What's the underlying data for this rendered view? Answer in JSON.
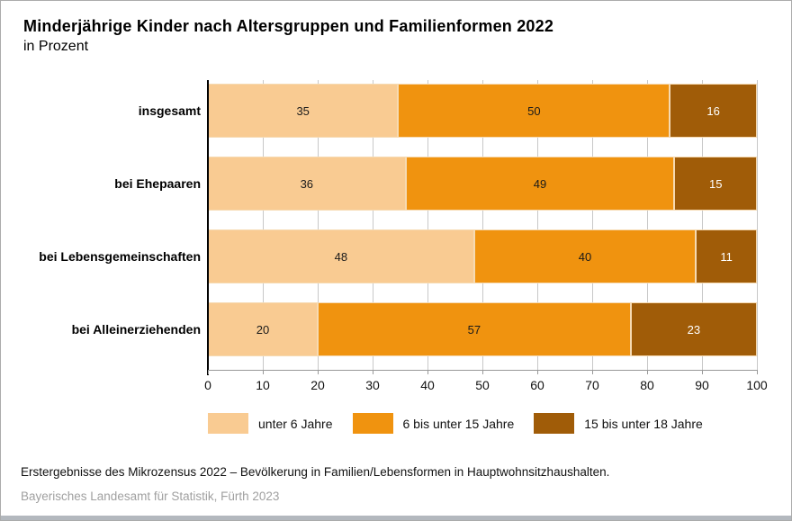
{
  "header": {
    "title": "Minderjährige Kinder nach Altersgruppen und Familienformen 2022",
    "subtitle": "in Prozent"
  },
  "chart_data": {
    "type": "bar",
    "variant": "horizontal-stacked",
    "title": "Minderjährige Kinder nach Altersgruppen und Familienformen 2022",
    "subtitle": "in Prozent",
    "categories": [
      "insgesamt",
      "bei Ehepaaren",
      "bei Lebensgemeinschaften",
      "bei Alleinerziehenden"
    ],
    "series": [
      {
        "name": "unter 6 Jahre",
        "color": "#F9CB92",
        "label_color": "#1a1a1a",
        "values": [
          35,
          36,
          48,
          20
        ]
      },
      {
        "name": "6 bis unter 15 Jahre",
        "color": "#F0930F",
        "label_color": "#1a1a1a",
        "values": [
          50,
          49,
          40,
          57
        ]
      },
      {
        "name": "15 bis unter 18 Jahre",
        "color": "#A05C08",
        "label_color": "#ffffff",
        "values": [
          16,
          15,
          11,
          23
        ]
      }
    ],
    "xlim": [
      0,
      100
    ],
    "x_ticks": [
      0,
      10,
      20,
      30,
      40,
      50,
      60,
      70,
      80,
      90,
      100
    ],
    "grid": true,
    "legend_position": "bottom"
  },
  "footer": {
    "source": "Erstergebnisse des Mikrozensus 2022 – Bevölkerung in Familien/Lebensformen in Hauptwohnsitzhaushalten.",
    "credit": "Bayerisches Landesamt für Statistik, Fürth 2023"
  },
  "colors": {
    "grid": "#C8C8C8",
    "axis": "#000000",
    "baseline": "#999999",
    "frame_border": "#ABABAB",
    "bottom_strip": "#B3B8BE",
    "credit_text": "#A0A0A0"
  }
}
